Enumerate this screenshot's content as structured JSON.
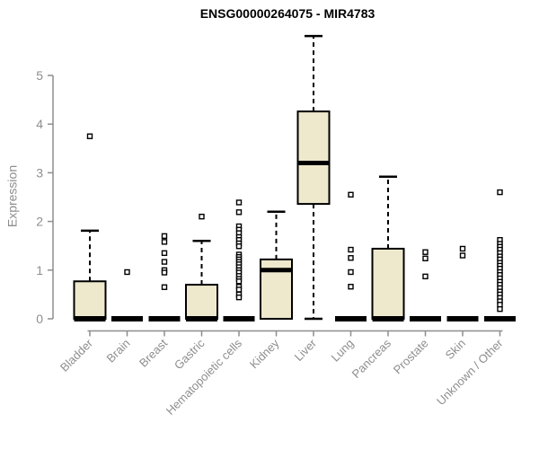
{
  "chart_data": {
    "type": "boxplot",
    "title": "ENSG00000264075 - MIR4783",
    "xlabel": "",
    "ylabel": "Expression",
    "ylim": [
      0,
      5
    ],
    "yticks": [
      0,
      1,
      2,
      3,
      4,
      5
    ],
    "grid": false,
    "legend": "none",
    "colors": {
      "box_fill": "#EEE8CD",
      "box_stroke": "#000000",
      "median_color": "#000000",
      "outlier_stroke": "#000000",
      "outlier_fill": "#ffffff",
      "axis_color": "#8e8e8e",
      "title_color": "#000000"
    },
    "categories": [
      "Bladder",
      "Brain",
      "Breast",
      "Gastric",
      "Hematopoietic cells",
      "Kidney",
      "Liver",
      "Lung",
      "Pancreas",
      "Prostate",
      "Skin",
      "Unknown / Other"
    ],
    "series": [
      {
        "category": "Bladder",
        "min": 0,
        "q1": 0,
        "median": 0,
        "q3": 0.77,
        "max": 1.81,
        "outliers": [
          3.75
        ]
      },
      {
        "category": "Brain",
        "min": 0,
        "q1": 0,
        "median": 0,
        "q3": 0,
        "max": 0,
        "outliers": [
          0.96
        ]
      },
      {
        "category": "Breast",
        "min": 0,
        "q1": 0,
        "median": 0,
        "q3": 0,
        "max": 0,
        "outliers": [
          1.7,
          1.58,
          1.35,
          1.17,
          1.0,
          0.95,
          0.65
        ]
      },
      {
        "category": "Gastric",
        "min": 0,
        "q1": 0,
        "median": 0,
        "q3": 0.7,
        "max": 1.6,
        "outliers": [
          2.1
        ]
      },
      {
        "category": "Hematopoietic cells",
        "min": 0,
        "q1": 0,
        "median": 0,
        "q3": 0,
        "max": 0,
        "outliers": [
          2.39,
          2.19,
          1.9,
          1.83,
          1.76,
          1.68,
          1.62,
          1.55,
          1.49,
          1.32,
          1.27,
          1.22,
          1.17,
          1.12,
          1.06,
          1.0,
          0.95,
          0.88,
          0.82,
          0.77,
          0.66,
          0.6,
          0.5,
          0.44
        ]
      },
      {
        "category": "Kidney",
        "min": 0,
        "q1": 0,
        "median": 1.0,
        "q3": 1.22,
        "max": 2.2,
        "outliers": []
      },
      {
        "category": "Liver",
        "min": 0,
        "q1": 2.36,
        "median": 3.2,
        "q3": 4.26,
        "max": 5.81,
        "outliers": []
      },
      {
        "category": "Lung",
        "min": 0,
        "q1": 0,
        "median": 0,
        "q3": 0,
        "max": 0,
        "outliers": [
          2.55,
          1.42,
          1.25,
          0.96,
          0.66
        ]
      },
      {
        "category": "Pancreas",
        "min": 0,
        "q1": 0,
        "median": 0,
        "q3": 1.44,
        "max": 2.92,
        "outliers": []
      },
      {
        "category": "Prostate",
        "min": 0,
        "q1": 0,
        "median": 0,
        "q3": 0,
        "max": 0,
        "outliers": [
          1.37,
          1.24,
          0.87
        ]
      },
      {
        "category": "Skin",
        "min": 0,
        "q1": 0,
        "median": 0,
        "q3": 0,
        "max": 0,
        "outliers": [
          1.44,
          1.3
        ]
      },
      {
        "category": "Unknown / Other",
        "min": 0,
        "q1": 0,
        "median": 0,
        "q3": 0,
        "max": 0,
        "outliers": [
          2.6,
          1.62,
          1.54,
          1.48,
          1.42,
          1.35,
          1.28,
          1.22,
          1.15,
          1.09,
          1.03,
          0.96,
          0.9,
          0.83,
          0.76,
          0.7,
          0.63,
          0.56,
          0.5,
          0.43,
          0.36,
          0.29,
          0.2
        ]
      }
    ]
  }
}
